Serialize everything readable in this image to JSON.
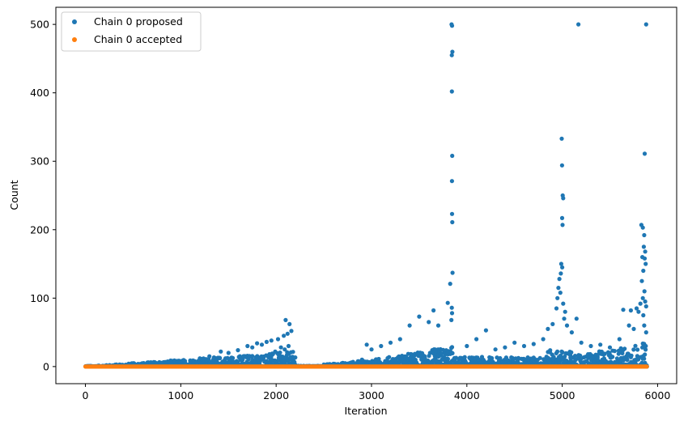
{
  "chart_data": {
    "type": "scatter",
    "title": "",
    "xlabel": "Iteration",
    "ylabel": "Count",
    "xlim": [
      -310,
      6200
    ],
    "ylim": [
      -25,
      525
    ],
    "xticks": [
      0,
      1000,
      2000,
      3000,
      4000,
      5000,
      6000
    ],
    "yticks": [
      0,
      100,
      200,
      300,
      400,
      500
    ],
    "legend_position": "top-left",
    "grid": false,
    "colors": {
      "proposed": "#1f77b4",
      "accepted": "#ff7f0e"
    },
    "series": [
      {
        "name": "Chain 0 proposed",
        "color": "#1f77b4",
        "points": [
          [
            3840,
            500
          ],
          [
            3845,
            498
          ],
          [
            3848,
            460
          ],
          [
            3842,
            455
          ],
          [
            3843,
            402
          ],
          [
            3846,
            308
          ],
          [
            3844,
            271
          ],
          [
            3845,
            223
          ],
          [
            3847,
            211
          ],
          [
            3850,
            137
          ],
          [
            3825,
            121
          ],
          [
            3842,
            86
          ],
          [
            3845,
            78
          ],
          [
            3838,
            68
          ],
          [
            3800,
            93
          ],
          [
            5170,
            500
          ],
          [
            5880,
            500
          ],
          [
            5865,
            311
          ],
          [
            4995,
            333
          ],
          [
            4998,
            294
          ],
          [
            5005,
            250
          ],
          [
            5010,
            246
          ],
          [
            4999,
            217
          ],
          [
            5003,
            207
          ],
          [
            4990,
            150
          ],
          [
            5000,
            145
          ],
          [
            4985,
            136
          ],
          [
            4970,
            128
          ],
          [
            4960,
            115
          ],
          [
            4980,
            108
          ],
          [
            4950,
            100
          ],
          [
            5010,
            92
          ],
          [
            5030,
            80
          ],
          [
            4940,
            85
          ],
          [
            5020,
            70
          ],
          [
            5050,
            60
          ],
          [
            4900,
            62
          ],
          [
            5100,
            50
          ],
          [
            5150,
            70
          ],
          [
            5830,
            207
          ],
          [
            5845,
            203
          ],
          [
            5860,
            192
          ],
          [
            5870,
            168
          ],
          [
            5855,
            175
          ],
          [
            5840,
            160
          ],
          [
            5865,
            158
          ],
          [
            5875,
            150
          ],
          [
            5850,
            140
          ],
          [
            5835,
            125
          ],
          [
            5862,
            110
          ],
          [
            5845,
            100
          ],
          [
            5870,
            95
          ],
          [
            5880,
            88
          ],
          [
            5820,
            92
          ],
          [
            5800,
            80
          ],
          [
            5850,
            75
          ],
          [
            5780,
            85
          ],
          [
            5720,
            82
          ],
          [
            5640,
            83
          ],
          [
            5700,
            60
          ],
          [
            5750,
            55
          ],
          [
            5860,
            60
          ],
          [
            5880,
            50
          ],
          [
            2100,
            68
          ],
          [
            2140,
            62
          ],
          [
            2160,
            52
          ],
          [
            2120,
            48
          ],
          [
            2080,
            45
          ],
          [
            2020,
            40
          ],
          [
            1950,
            38
          ],
          [
            1900,
            36
          ],
          [
            1850,
            32
          ],
          [
            1800,
            34
          ],
          [
            1750,
            28
          ],
          [
            1700,
            30
          ],
          [
            1600,
            24
          ],
          [
            1500,
            20
          ],
          [
            1420,
            22
          ],
          [
            1300,
            15
          ],
          [
            1200,
            12
          ],
          [
            1100,
            9
          ],
          [
            1000,
            7
          ],
          [
            900,
            5
          ],
          [
            800,
            4
          ],
          [
            700,
            3
          ],
          [
            600,
            2
          ],
          [
            500,
            2
          ],
          [
            400,
            1
          ],
          [
            2130,
            30
          ],
          [
            2090,
            25
          ],
          [
            2050,
            28
          ],
          [
            1990,
            22
          ],
          [
            1930,
            18
          ],
          [
            3500,
            73
          ],
          [
            3600,
            65
          ],
          [
            3700,
            60
          ],
          [
            3650,
            82
          ],
          [
            3400,
            60
          ],
          [
            3300,
            40
          ],
          [
            3200,
            35
          ],
          [
            3100,
            30
          ],
          [
            3000,
            25
          ],
          [
            2950,
            32
          ],
          [
            4200,
            53
          ],
          [
            4100,
            40
          ],
          [
            4000,
            30
          ],
          [
            4300,
            25
          ],
          [
            4400,
            28
          ],
          [
            4500,
            35
          ],
          [
            4600,
            30
          ],
          [
            4700,
            33
          ],
          [
            4800,
            40
          ],
          [
            4850,
            55
          ],
          [
            5200,
            35
          ],
          [
            5300,
            30
          ],
          [
            5400,
            32
          ],
          [
            5500,
            28
          ],
          [
            5600,
            40
          ],
          [
            2500,
            3
          ],
          [
            2600,
            4
          ],
          [
            2700,
            5
          ],
          [
            2800,
            6
          ],
          [
            2900,
            10
          ]
        ]
      },
      {
        "name": "Chain 0 accepted",
        "color": "#ff7f0e",
        "x_range": [
          0,
          5890
        ],
        "value": 0
      }
    ]
  }
}
